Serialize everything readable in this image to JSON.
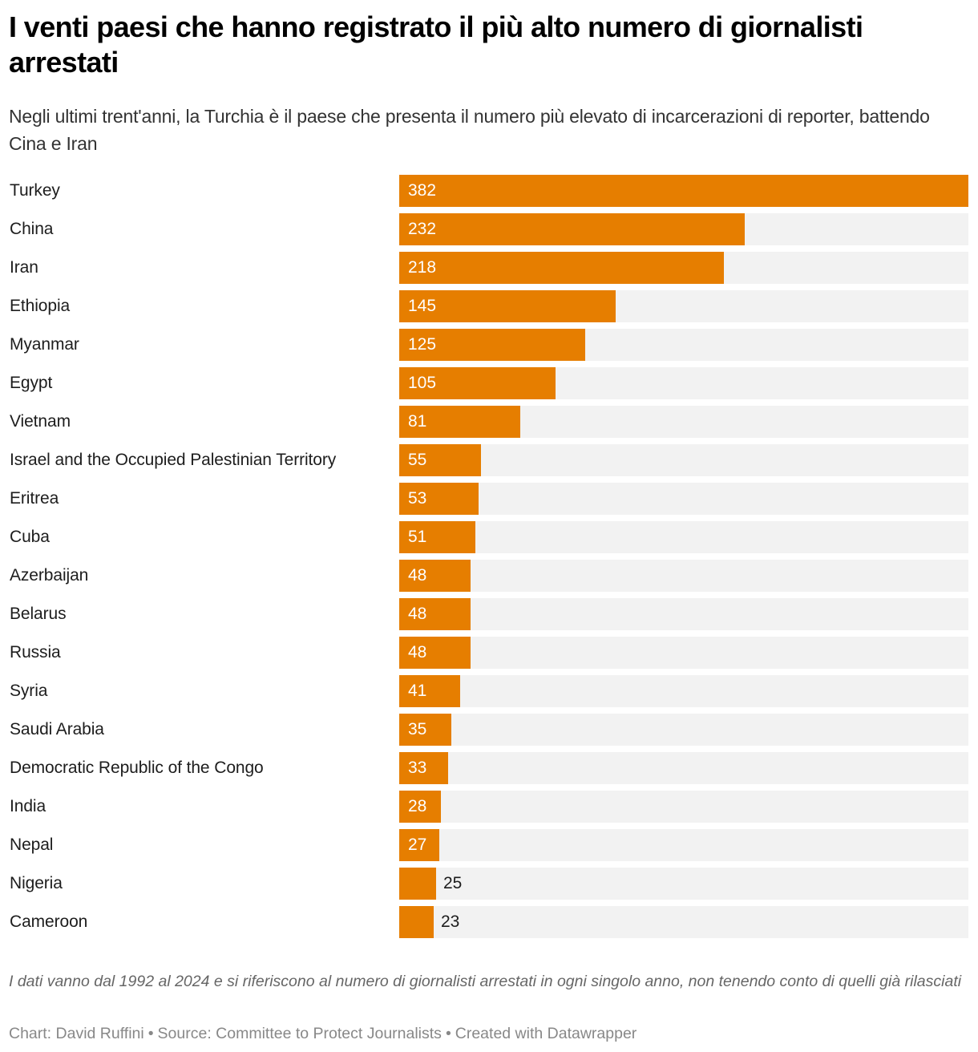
{
  "header": {
    "title": "I venti paesi che hanno registrato il più alto numero di giornalisti arrestati",
    "subtitle": "Negli ultimi trent'anni, la Turchia è il paese che presenta il numero più elevato di incarcerazioni di reporter, battendo Cina e Iran"
  },
  "colors": {
    "bar": "#e67e00",
    "track": "#f2f2f2",
    "label_inside": "#ffffff",
    "label_outside": "#1d1d1d"
  },
  "chart_data": {
    "type": "bar",
    "orientation": "horizontal",
    "title": "I venti paesi che hanno registrato il più alto numero di giornalisti arrestati",
    "xlabel": "",
    "ylabel": "",
    "xlim": [
      0,
      382
    ],
    "grid": false,
    "legend": "none",
    "categories": [
      "Turkey",
      "China",
      "Iran",
      "Ethiopia",
      "Myanmar",
      "Egypt",
      "Vietnam",
      "Israel and the Occupied Palestinian Territory",
      "Eritrea",
      "Cuba",
      "Azerbaijan",
      "Belarus",
      "Russia",
      "Syria",
      "Saudi Arabia",
      "Democratic Republic of the Congo",
      "India",
      "Nepal",
      "Nigeria",
      "Cameroon"
    ],
    "values": [
      382,
      232,
      218,
      145,
      125,
      105,
      81,
      55,
      53,
      51,
      48,
      48,
      48,
      41,
      35,
      33,
      28,
      27,
      25,
      23
    ]
  },
  "notes": {
    "description": "I dati vanno dal 1992 al 2024 e si riferiscono al numero di giornalisti arrestati in ogni singolo anno, non tenendo conto di quelli già rilasciati"
  },
  "footer": {
    "chart_credit": "Chart: David Ruffini",
    "source": "Source: Committee to Protect Journalists",
    "created_with": "Created with Datawrapper",
    "separator": "•"
  }
}
